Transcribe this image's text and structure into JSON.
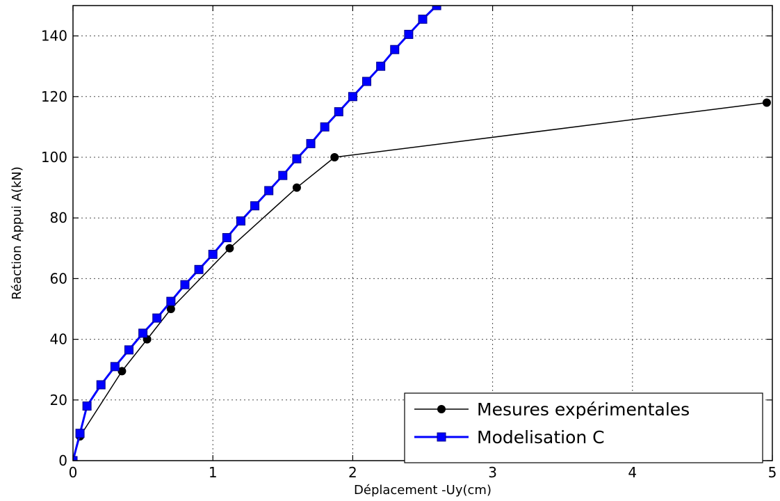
{
  "chart_data": {
    "type": "line",
    "title": "",
    "xlabel": "Déplacement -Uy(cm)",
    "ylabel": "Réaction Appui A(kN)",
    "xlim": [
      0,
      5
    ],
    "ylim": [
      0,
      150
    ],
    "xticks": [
      0,
      1,
      2,
      3,
      4,
      5
    ],
    "yticks": [
      0,
      20,
      40,
      60,
      80,
      100,
      120,
      140
    ],
    "grid": true,
    "legend_position": "lower-right",
    "series": [
      {
        "name": "Mesures expérimentales",
        "color": "#000000",
        "marker": "circle",
        "x": [
          0,
          0.05,
          0.35,
          0.53,
          0.7,
          1.12,
          1.6,
          1.87,
          4.96
        ],
        "y": [
          0,
          8,
          29.5,
          40,
          50,
          70,
          90,
          100,
          118
        ]
      },
      {
        "name": "Modelisation C",
        "color": "#0000ff",
        "marker": "square",
        "x": [
          0,
          0.05,
          0.1,
          0.2,
          0.3,
          0.4,
          0.5,
          0.6,
          0.7,
          0.8,
          0.9,
          1.0,
          1.1,
          1.2,
          1.3,
          1.4,
          1.5,
          1.6,
          1.7,
          1.8,
          1.9,
          2.0,
          2.1,
          2.2,
          2.3,
          2.4,
          2.5,
          2.6
        ],
        "y": [
          0,
          9,
          18,
          25,
          31,
          36.5,
          42,
          47,
          52.5,
          58,
          63,
          68,
          73.5,
          79,
          84,
          89,
          94,
          99.5,
          104.5,
          110,
          115,
          120,
          125,
          130,
          135.5,
          140.5,
          145.5,
          150
        ]
      }
    ]
  }
}
